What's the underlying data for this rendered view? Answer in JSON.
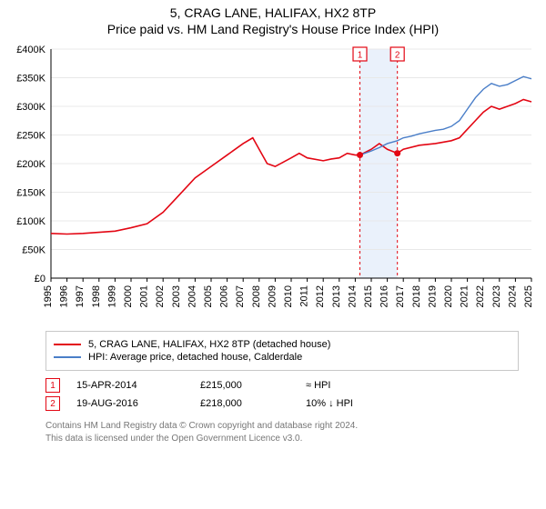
{
  "header": {
    "title1": "5, CRAG LANE, HALIFAX, HX2 8TP",
    "title2": "Price paid vs. HM Land Registry's House Price Index (HPI)"
  },
  "chart": {
    "type": "line",
    "background_color": "#ffffff",
    "grid_color": "#e8e8e8",
    "axis_color": "#000000",
    "axis_fontsize": 11,
    "y": {
      "min": 0,
      "max": 400000,
      "tick_step": 50000,
      "tick_labels": [
        "£0",
        "£50K",
        "£100K",
        "£150K",
        "£200K",
        "£250K",
        "£300K",
        "£350K",
        "£400K"
      ]
    },
    "x": {
      "min": 1995,
      "max": 2025,
      "tick_step": 1,
      "tick_labels": [
        "1995",
        "1996",
        "1997",
        "1998",
        "1999",
        "2000",
        "2001",
        "2002",
        "2003",
        "2004",
        "2005",
        "2006",
        "2007",
        "2008",
        "2009",
        "2010",
        "2011",
        "2012",
        "2013",
        "2014",
        "2015",
        "2016",
        "2017",
        "2018",
        "2019",
        "2020",
        "2021",
        "2022",
        "2023",
        "2024",
        "2025"
      ]
    },
    "series": [
      {
        "name": "price_paid",
        "color": "#e30613",
        "width": 1.6,
        "label": "5, CRAG LANE, HALIFAX, HX2 8TP (detached house)",
        "points": [
          [
            1995,
            78000
          ],
          [
            1996,
            77000
          ],
          [
            1997,
            78000
          ],
          [
            1998,
            80000
          ],
          [
            1999,
            82000
          ],
          [
            2000,
            88000
          ],
          [
            2001,
            95000
          ],
          [
            2002,
            115000
          ],
          [
            2003,
            145000
          ],
          [
            2004,
            175000
          ],
          [
            2005,
            195000
          ],
          [
            2006,
            215000
          ],
          [
            2007,
            235000
          ],
          [
            2007.6,
            245000
          ],
          [
            2008,
            225000
          ],
          [
            2008.5,
            200000
          ],
          [
            2009,
            195000
          ],
          [
            2010,
            210000
          ],
          [
            2010.5,
            218000
          ],
          [
            2011,
            210000
          ],
          [
            2012,
            205000
          ],
          [
            2012.5,
            208000
          ],
          [
            2013,
            210000
          ],
          [
            2013.5,
            218000
          ],
          [
            2014,
            215000
          ],
          [
            2014.29,
            215000
          ],
          [
            2015,
            225000
          ],
          [
            2015.5,
            235000
          ],
          [
            2016,
            225000
          ],
          [
            2016.63,
            218000
          ],
          [
            2017,
            225000
          ],
          [
            2018,
            232000
          ],
          [
            2019,
            235000
          ],
          [
            2020,
            240000
          ],
          [
            2020.5,
            245000
          ],
          [
            2021,
            260000
          ],
          [
            2021.5,
            275000
          ],
          [
            2022,
            290000
          ],
          [
            2022.5,
            300000
          ],
          [
            2023,
            295000
          ],
          [
            2023.5,
            300000
          ],
          [
            2024,
            305000
          ],
          [
            2024.5,
            312000
          ],
          [
            2025,
            308000
          ]
        ]
      },
      {
        "name": "hpi",
        "color": "#4a7ec8",
        "width": 1.4,
        "label": "HPI: Average price, detached house, Calderdale",
        "start_x": 2014.29,
        "points": [
          [
            2014.29,
            215000
          ],
          [
            2015,
            222000
          ],
          [
            2015.5,
            228000
          ],
          [
            2016,
            235000
          ],
          [
            2016.63,
            240000
          ],
          [
            2017,
            245000
          ],
          [
            2017.5,
            248000
          ],
          [
            2018,
            252000
          ],
          [
            2018.5,
            255000
          ],
          [
            2019,
            258000
          ],
          [
            2019.5,
            260000
          ],
          [
            2020,
            265000
          ],
          [
            2020.5,
            275000
          ],
          [
            2021,
            295000
          ],
          [
            2021.5,
            315000
          ],
          [
            2022,
            330000
          ],
          [
            2022.5,
            340000
          ],
          [
            2023,
            335000
          ],
          [
            2023.5,
            338000
          ],
          [
            2024,
            345000
          ],
          [
            2024.5,
            352000
          ],
          [
            2025,
            348000
          ]
        ]
      }
    ],
    "sale_markers": [
      {
        "idx": "1",
        "x": 2014.29,
        "y": 215000,
        "band": false
      },
      {
        "idx": "2",
        "x": 2016.63,
        "y": 218000,
        "band": true,
        "band_start": 2014.29,
        "band_end": 2016.63,
        "band_color": "#eaf1fb"
      }
    ],
    "marker_line_color": "#e30613",
    "marker_dot_color": "#e30613",
    "marker_dot_radius": 3.5,
    "marker_box_size": 15
  },
  "legend": {
    "items": [
      {
        "color": "#e30613",
        "label": "5, CRAG LANE, HALIFAX, HX2 8TP (detached house)"
      },
      {
        "color": "#4a7ec8",
        "label": "HPI: Average price, detached house, Calderdale"
      }
    ]
  },
  "sales": [
    {
      "idx": "1",
      "date": "15-APR-2014",
      "price": "£215,000",
      "note": "≈ HPI"
    },
    {
      "idx": "2",
      "date": "19-AUG-2016",
      "price": "£218,000",
      "note": "10% ↓ HPI"
    }
  ],
  "footer": {
    "line1": "Contains HM Land Registry data © Crown copyright and database right 2024.",
    "line2": "This data is licensed under the Open Government Licence v3.0."
  }
}
